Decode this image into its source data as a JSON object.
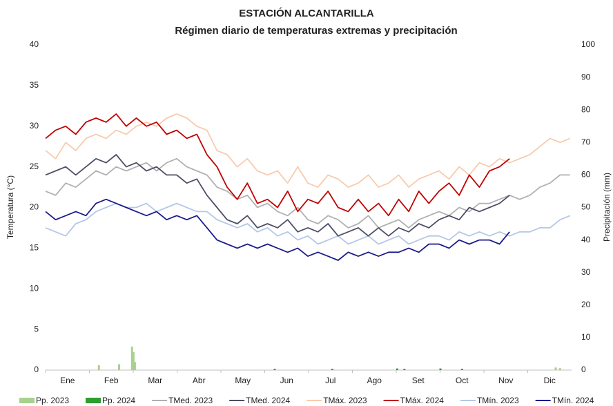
{
  "chart_data": {
    "type": "line",
    "title": "ESTACIÓN ALCANTARILLA",
    "subtitle": "Régimen diario de temperaturas extremas y precipitación",
    "y_label": "Temperatura (°C)",
    "y2_label": "Precipitación (mm)",
    "categories": [
      "Ene",
      "Feb",
      "Mar",
      "Abr",
      "May",
      "Jun",
      "Jul",
      "Ago",
      "Set",
      "Oct",
      "Nov",
      "Dic"
    ],
    "xlim": [
      1,
      366
    ],
    "ylim": [
      0,
      40
    ],
    "yticks": [
      0,
      5,
      10,
      15,
      20,
      25,
      30,
      35,
      40
    ],
    "y2lim": [
      0,
      100
    ],
    "y2ticks": [
      0,
      10,
      20,
      30,
      40,
      50,
      60,
      70,
      80,
      90,
      100
    ],
    "grid": false,
    "legend": "bottom",
    "x": [
      1,
      8,
      15,
      22,
      29,
      36,
      43,
      50,
      57,
      64,
      71,
      78,
      85,
      92,
      99,
      106,
      113,
      120,
      127,
      134,
      141,
      148,
      155,
      162,
      169,
      176,
      183,
      190,
      197,
      204,
      211,
      218,
      225,
      232,
      239,
      246,
      253,
      260,
      267,
      274,
      281,
      288,
      295,
      302,
      309,
      316,
      323,
      330,
      337,
      344,
      351,
      358,
      365
    ],
    "series": [
      {
        "name": "Pp. 2023",
        "type": "bar",
        "axis": "y2",
        "color": "#a9d18e",
        "x": [
          38,
          52,
          61,
          62,
          63,
          355,
          358
        ],
        "values": [
          1.5,
          1.8,
          7.2,
          5.5,
          2.5,
          0.8,
          0.6
        ]
      },
      {
        "name": "Pp. 2024",
        "type": "bar",
        "axis": "y2",
        "color": "#2e9e2e",
        "x": [
          160,
          200,
          245,
          250,
          275,
          290
        ],
        "values": [
          0.4,
          0.4,
          0.5,
          0.4,
          0.5,
          0.4
        ]
      },
      {
        "name": "TMed. 2023",
        "type": "line",
        "color": "#b0b0b0",
        "values": [
          22,
          21.5,
          23,
          22.5,
          23.5,
          24.5,
          24,
          25,
          24.5,
          25,
          25.5,
          24.5,
          25.5,
          26,
          25,
          24.5,
          24,
          22.5,
          22,
          21,
          21.5,
          20,
          20.5,
          19.5,
          19,
          20,
          18.5,
          18,
          19,
          18.5,
          17.5,
          18,
          19,
          17.5,
          18,
          18.5,
          17.5,
          18.5,
          19,
          19.5,
          19,
          20,
          19.5,
          20.5,
          20.5,
          21,
          21.5,
          21,
          21.5,
          22.5,
          23,
          24,
          24
        ]
      },
      {
        "name": "TMed. 2024",
        "type": "line",
        "color": "#4d4d66",
        "values": [
          24,
          24.5,
          25,
          24,
          25,
          26,
          25.5,
          26.5,
          25,
          25.5,
          24.5,
          25,
          24,
          24,
          23,
          23.5,
          21.5,
          20,
          18.5,
          18,
          19,
          17.5,
          18,
          17.5,
          18.5,
          17,
          17.5,
          17,
          18,
          16.5,
          17,
          17.5,
          16.5,
          17.5,
          16.5,
          17.5,
          17,
          18,
          17.5,
          18.5,
          19,
          18.5,
          20,
          19.5,
          20,
          20.5,
          21.5,
          null,
          null,
          null,
          null,
          null,
          null
        ]
      },
      {
        "name": "TMáx. 2023",
        "type": "line",
        "color": "#f8cbad",
        "values": [
          27,
          26,
          28,
          27,
          28.5,
          29,
          28.5,
          29.5,
          29,
          30,
          30.5,
          30,
          31,
          31.5,
          31,
          30,
          29.5,
          27,
          26.5,
          25,
          26,
          24.5,
          24,
          24.5,
          23,
          25,
          23,
          22.5,
          24,
          23.5,
          22.5,
          23,
          24,
          22.5,
          23,
          24,
          22.5,
          23.5,
          24,
          24.5,
          23.5,
          25,
          24,
          25.5,
          25,
          26,
          25.5,
          26,
          26.5,
          27.5,
          28.5,
          28,
          28.5
        ]
      },
      {
        "name": "TMáx. 2024",
        "type": "line",
        "color": "#c00000",
        "values": [
          28.5,
          29.5,
          30,
          29,
          30.5,
          31,
          30.5,
          31.5,
          30,
          31,
          30,
          30.5,
          29,
          29.5,
          28.5,
          29,
          26.5,
          25,
          22.5,
          21,
          23,
          20.5,
          21,
          20,
          22,
          19.5,
          21,
          20.5,
          22,
          20,
          19.5,
          21,
          19.5,
          20.5,
          19,
          21,
          19.5,
          22,
          20.5,
          22,
          23,
          21.5,
          24,
          22.5,
          24.5,
          25,
          26,
          null,
          null,
          null,
          null,
          null,
          null
        ]
      },
      {
        "name": "TMín. 2023",
        "type": "line",
        "color": "#b4c7e7",
        "values": [
          17.5,
          17,
          16.5,
          18,
          18.5,
          19.5,
          20,
          20.5,
          20,
          20,
          20.5,
          19.5,
          20,
          20.5,
          20,
          19.5,
          19.5,
          18.5,
          18,
          17.5,
          18,
          17,
          17.5,
          16.5,
          17,
          16,
          16.5,
          15.5,
          16,
          16.5,
          15.5,
          16,
          16.5,
          15.5,
          16,
          16.5,
          15.5,
          16,
          16.5,
          16.5,
          16,
          17,
          16.5,
          17,
          16.5,
          17,
          16.5,
          17,
          17,
          17.5,
          17.5,
          18.5,
          19
        ]
      },
      {
        "name": "TMín. 2024",
        "type": "line",
        "color": "#1a1a8c",
        "values": [
          19.5,
          18.5,
          19,
          19.5,
          19,
          20.5,
          21,
          20.5,
          20,
          19.5,
          19,
          19.5,
          18.5,
          19,
          18.5,
          19,
          17.5,
          16,
          15.5,
          15,
          15.5,
          15,
          15.5,
          15,
          14.5,
          15,
          14,
          14.5,
          14,
          13.5,
          14.5,
          14,
          14.5,
          14,
          14.5,
          14.5,
          15,
          14.5,
          15.5,
          15.5,
          15,
          16,
          15.5,
          16,
          16,
          15.5,
          17,
          null,
          null,
          null,
          null,
          null,
          null
        ]
      }
    ]
  }
}
